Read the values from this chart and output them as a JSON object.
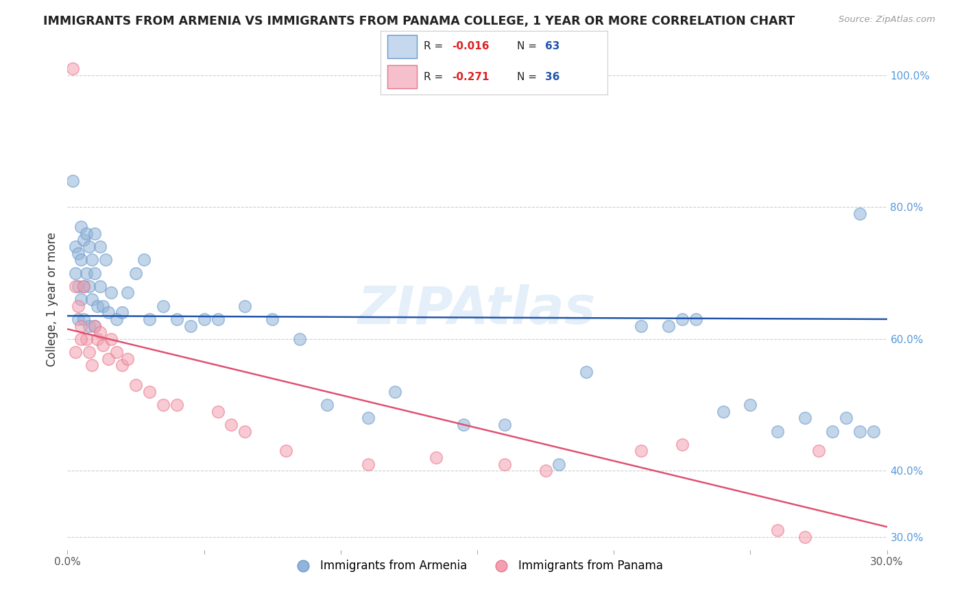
{
  "title": "IMMIGRANTS FROM ARMENIA VS IMMIGRANTS FROM PANAMA COLLEGE, 1 YEAR OR MORE CORRELATION CHART",
  "source": "Source: ZipAtlas.com",
  "ylabel": "College, 1 year or more",
  "xlim": [
    0.0,
    0.3
  ],
  "ylim": [
    0.28,
    1.04
  ],
  "yticks_right": [
    0.3,
    0.4,
    0.6,
    0.8,
    1.0
  ],
  "ytick_labels_right": [
    "30.0%",
    "40.0%",
    "60.0%",
    "80.0%",
    "100.0%"
  ],
  "legend_label_blue": "Immigrants from Armenia",
  "legend_label_pink": "Immigrants from Panama",
  "blue_color": "#92B4D8",
  "pink_color": "#F4A0B0",
  "blue_edge_color": "#6699CC",
  "pink_edge_color": "#E8748A",
  "blue_line_color": "#2255AA",
  "pink_line_color": "#E05070",
  "watermark": "ZIPAtlas",
  "background_color": "#ffffff",
  "grid_color": "#cccccc",
  "blue_line_y0": 0.635,
  "blue_line_y1": 0.63,
  "pink_line_y0": 0.615,
  "pink_line_y1": 0.315
}
